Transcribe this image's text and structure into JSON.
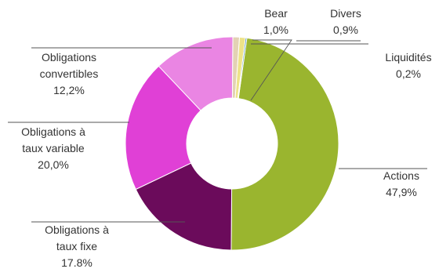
{
  "chart_data": {
    "type": "pie",
    "variant": "donut",
    "legend": "none",
    "slices": [
      {
        "name": "Actions",
        "value": 47.9,
        "label_lines": [
          "Actions",
          "47,9%"
        ],
        "color": "#9ab52f"
      },
      {
        "name": "Obligations à taux fixe",
        "value": 17.8,
        "label_lines": [
          "Obligations à",
          "taux fixe",
          "17.8%"
        ],
        "color": "#6b0b5b"
      },
      {
        "name": "Obligations à taux variable",
        "value": 20.0,
        "label_lines": [
          "Obligations à",
          "taux variable",
          "20,0%"
        ],
        "color": "#e040d6"
      },
      {
        "name": "Obligations convertibles",
        "value": 12.2,
        "label_lines": [
          "Obligations",
          "convertibles",
          "12,2%"
        ],
        "color": "#ea85e3"
      },
      {
        "name": "Bear",
        "value": 1.0,
        "label_lines": [
          "Bear",
          "1,0%"
        ],
        "color": "#e3d2b4"
      },
      {
        "name": "Divers",
        "value": 0.9,
        "label_lines": [
          "Divers",
          "0,9%"
        ],
        "color": "#ede389"
      },
      {
        "name": "Liquidités",
        "value": 0.2,
        "label_lines": [
          "Liquidités",
          "0,2%"
        ],
        "color": "#2c7bb6"
      }
    ]
  }
}
